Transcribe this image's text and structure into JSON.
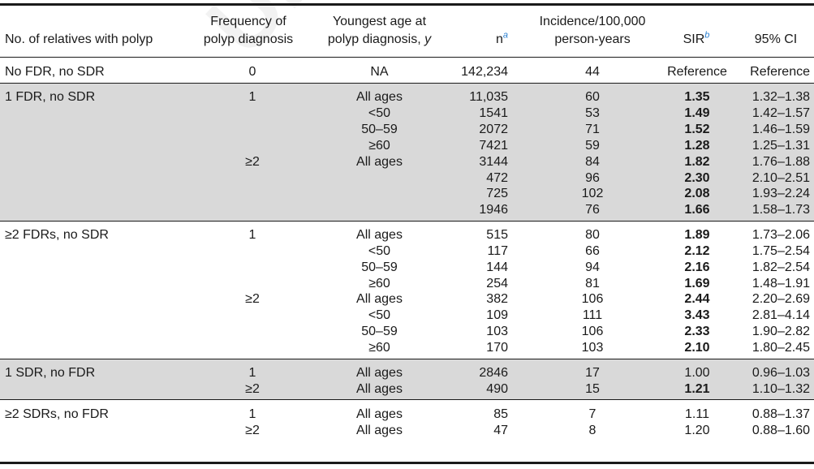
{
  "header": {
    "col_relatives": "No. of relatives with polyp",
    "col_frequency_line1": "Frequency of",
    "col_frequency_line2": "polyp diagnosis",
    "col_age_line1": "Youngest age at",
    "col_age_line2": "polyp diagnosis, ",
    "col_age_unit": "y",
    "col_n": "n",
    "col_n_sup": "a",
    "col_incidence_line1": "Incidence/100,000",
    "col_incidence_line2": "person-years",
    "col_sir": "SIR",
    "col_sir_sup": "b",
    "col_ci": "95% CI"
  },
  "rows": [
    {
      "rel": "No FDR, no SDR",
      "freq": "0",
      "age": "NA",
      "n": "142,234",
      "inc": "44",
      "sir": "Reference",
      "ci": "Reference",
      "bold": false
    },
    {
      "rel": "1 FDR, no SDR",
      "freq": "1",
      "age": "All ages",
      "n": "11,035",
      "inc": "60",
      "sir": "1.35",
      "ci": "1.32–1.38",
      "bold": true
    },
    {
      "rel": "",
      "freq": "",
      "age": "<50",
      "n": "1541",
      "inc": "53",
      "sir": "1.49",
      "ci": "1.42–1.57",
      "bold": true
    },
    {
      "rel": "",
      "freq": "",
      "age": "50–59",
      "n": "2072",
      "inc": "71",
      "sir": "1.52",
      "ci": "1.46–1.59",
      "bold": true
    },
    {
      "rel": "",
      "freq": "",
      "age": "≥60",
      "n": "7421",
      "inc": "59",
      "sir": "1.28",
      "ci": "1.25–1.31",
      "bold": true
    },
    {
      "rel": "",
      "freq": "≥2",
      "age": "All ages",
      "n": "3144",
      "inc": "84",
      "sir": "1.82",
      "ci": "1.76–1.88",
      "bold": true
    },
    {
      "rel": "",
      "freq": "",
      "age": "",
      "n": "472",
      "inc": "96",
      "sir": "2.30",
      "ci": "2.10–2.51",
      "bold": true
    },
    {
      "rel": "",
      "freq": "",
      "age": "",
      "n": "725",
      "inc": "102",
      "sir": "2.08",
      "ci": "1.93–2.24",
      "bold": true
    },
    {
      "rel": "",
      "freq": "",
      "age": "",
      "n": "1946",
      "inc": "76",
      "sir": "1.66",
      "ci": "1.58–1.73",
      "bold": true
    },
    {
      "rel": "≥2 FDRs, no SDR",
      "freq": "1",
      "age": "All ages",
      "n": "515",
      "inc": "80",
      "sir": "1.89",
      "ci": "1.73–2.06",
      "bold": true
    },
    {
      "rel": "",
      "freq": "",
      "age": "<50",
      "n": "117",
      "inc": "66",
      "sir": "2.12",
      "ci": "1.75–2.54",
      "bold": true
    },
    {
      "rel": "",
      "freq": "",
      "age": "50–59",
      "n": "144",
      "inc": "94",
      "sir": "2.16",
      "ci": "1.82–2.54",
      "bold": true
    },
    {
      "rel": "",
      "freq": "",
      "age": "≥60",
      "n": "254",
      "inc": "81",
      "sir": "1.69",
      "ci": "1.48–1.91",
      "bold": true
    },
    {
      "rel": "",
      "freq": "≥2",
      "age": "All ages",
      "n": "382",
      "inc": "106",
      "sir": "2.44",
      "ci": "2.20–2.69",
      "bold": true
    },
    {
      "rel": "",
      "freq": "",
      "age": "<50",
      "n": "109",
      "inc": "111",
      "sir": "3.43",
      "ci": "2.81–4.14",
      "bold": true
    },
    {
      "rel": "",
      "freq": "",
      "age": "50–59",
      "n": "103",
      "inc": "106",
      "sir": "2.33",
      "ci": "1.90–2.82",
      "bold": true
    },
    {
      "rel": "",
      "freq": "",
      "age": "≥60",
      "n": "170",
      "inc": "103",
      "sir": "2.10",
      "ci": "1.80–2.45",
      "bold": true
    },
    {
      "rel": "1 SDR, no FDR",
      "freq": "1",
      "age": "All ages",
      "n": "2846",
      "inc": "17",
      "sir": "1.00",
      "ci": "0.96–1.03",
      "bold": false
    },
    {
      "rel": "",
      "freq": "≥2",
      "age": "All ages",
      "n": "490",
      "inc": "15",
      "sir": "1.21",
      "ci": "1.10–1.32",
      "bold": true
    },
    {
      "rel": "≥2 SDRs, no FDR",
      "freq": "1",
      "age": "All ages",
      "n": "85",
      "inc": "7",
      "sir": "1.11",
      "ci": "0.88–1.37",
      "bold": false
    },
    {
      "rel": "",
      "freq": "≥2",
      "age": "All ages",
      "n": "47",
      "inc": "8",
      "sir": "1.20",
      "ci": "0.88–1.60",
      "bold": false
    }
  ],
  "watermark": "UNCORRECTED"
}
